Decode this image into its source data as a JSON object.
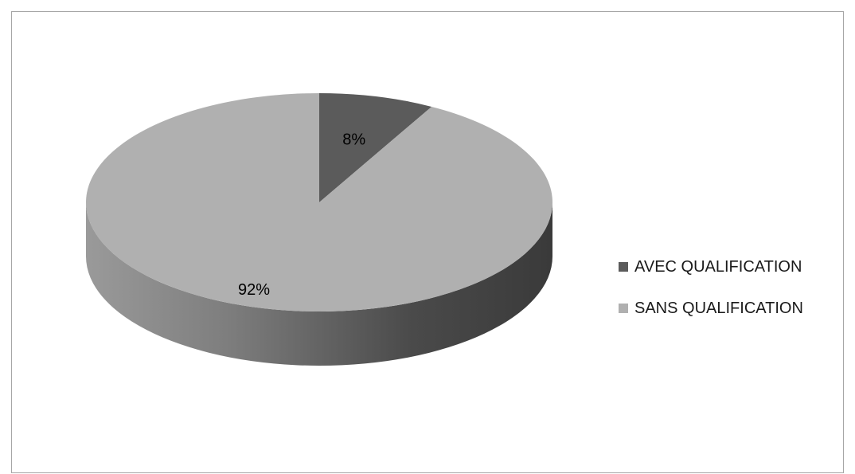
{
  "chart_data": {
    "type": "pie",
    "style": "3d",
    "categories": [
      "AVEC QUALIFICATION",
      "SANS QUALIFICATION"
    ],
    "values": [
      8,
      92
    ],
    "data_labels": [
      "8%",
      "92%"
    ],
    "title": "",
    "legend_position": "right",
    "colors": [
      "#5b5b5b",
      "#b0b0b0"
    ]
  }
}
